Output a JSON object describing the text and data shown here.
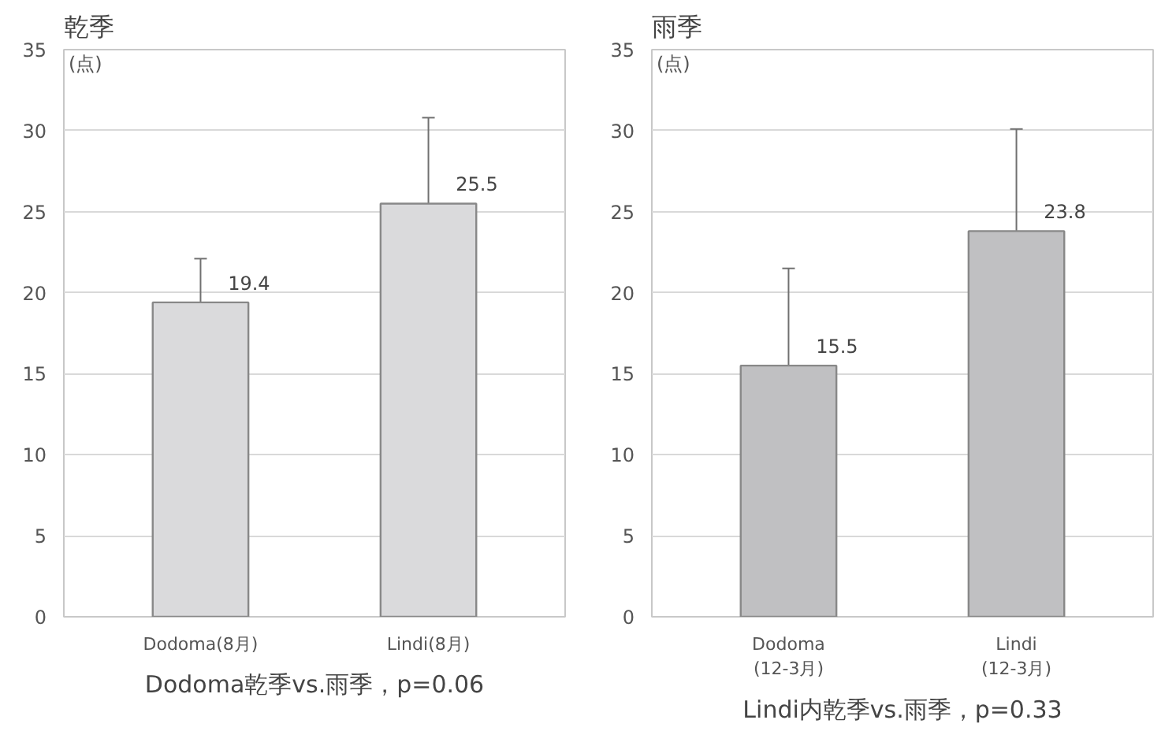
{
  "chart_data": [
    {
      "type": "bar",
      "title": "乾季",
      "ylabel": "(点)",
      "categories": [
        "Dodoma(8月)",
        "Lindi(8月)"
      ],
      "values": [
        19.4,
        25.5
      ],
      "errors": [
        2.7,
        5.3
      ],
      "color": "#dadadc",
      "ylim": [
        0,
        35
      ],
      "yticks": [
        0,
        5,
        10,
        15,
        20,
        25,
        30,
        35
      ],
      "grid": "y",
      "data_labels": true,
      "annotations": [
        "Dodoma乾季vs.雨季，p=0.06"
      ]
    },
    {
      "type": "bar",
      "title": "雨季",
      "ylabel": "(点)",
      "categories": [
        "Dodoma\n(12-3月)",
        "Lindi\n(12-3月)"
      ],
      "values": [
        15.5,
        23.8
      ],
      "errors": [
        6.0,
        6.3
      ],
      "color": "#c0c0c2",
      "ylim": [
        0,
        35
      ],
      "yticks": [
        0,
        5,
        10,
        15,
        20,
        25,
        30,
        35
      ],
      "grid": "y",
      "data_labels": true,
      "annotations": [
        "Lindi内乾季vs.雨季，p=0.33"
      ]
    }
  ]
}
